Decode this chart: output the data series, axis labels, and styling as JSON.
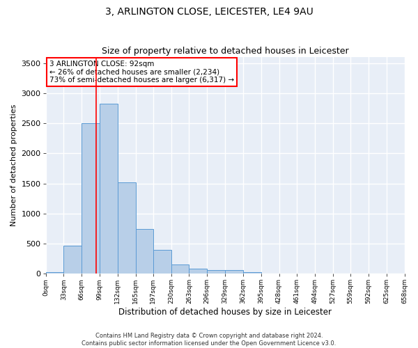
{
  "title": "3, ARLINGTON CLOSE, LEICESTER, LE4 9AU",
  "subtitle": "Size of property relative to detached houses in Leicester",
  "xlabel": "Distribution of detached houses by size in Leicester",
  "ylabel": "Number of detached properties",
  "bar_values": [
    30,
    470,
    2500,
    2820,
    1520,
    740,
    390,
    150,
    80,
    55,
    55,
    30,
    0,
    0,
    0,
    0,
    0,
    0,
    0,
    0
  ],
  "bin_edges": [
    0,
    33,
    66,
    99,
    132,
    165,
    197,
    230,
    263,
    296,
    329,
    362,
    395,
    428,
    461,
    494,
    527,
    559,
    592,
    625,
    658
  ],
  "x_tick_labels": [
    "0sqm",
    "33sqm",
    "66sqm",
    "99sqm",
    "132sqm",
    "165sqm",
    "197sqm",
    "230sqm",
    "263sqm",
    "296sqm",
    "329sqm",
    "362sqm",
    "395sqm",
    "428sqm",
    "461sqm",
    "494sqm",
    "527sqm",
    "559sqm",
    "592sqm",
    "625sqm",
    "658sqm"
  ],
  "bar_color": "#b8cfe8",
  "bar_edge_color": "#5b9bd5",
  "bar_edge_width": 0.7,
  "property_line_x": 92,
  "annotation_text": "3 ARLINGTON CLOSE: 92sqm\n← 26% of detached houses are smaller (2,234)\n73% of semi-detached houses are larger (6,317) →",
  "annotation_box_color": "red",
  "ylim": [
    0,
    3600
  ],
  "yticks": [
    0,
    500,
    1000,
    1500,
    2000,
    2500,
    3000,
    3500
  ],
  "background_color": "#e8eef7",
  "grid_color": "white",
  "footer_line1": "Contains HM Land Registry data © Crown copyright and database right 2024.",
  "footer_line2": "Contains public sector information licensed under the Open Government Licence v3.0."
}
